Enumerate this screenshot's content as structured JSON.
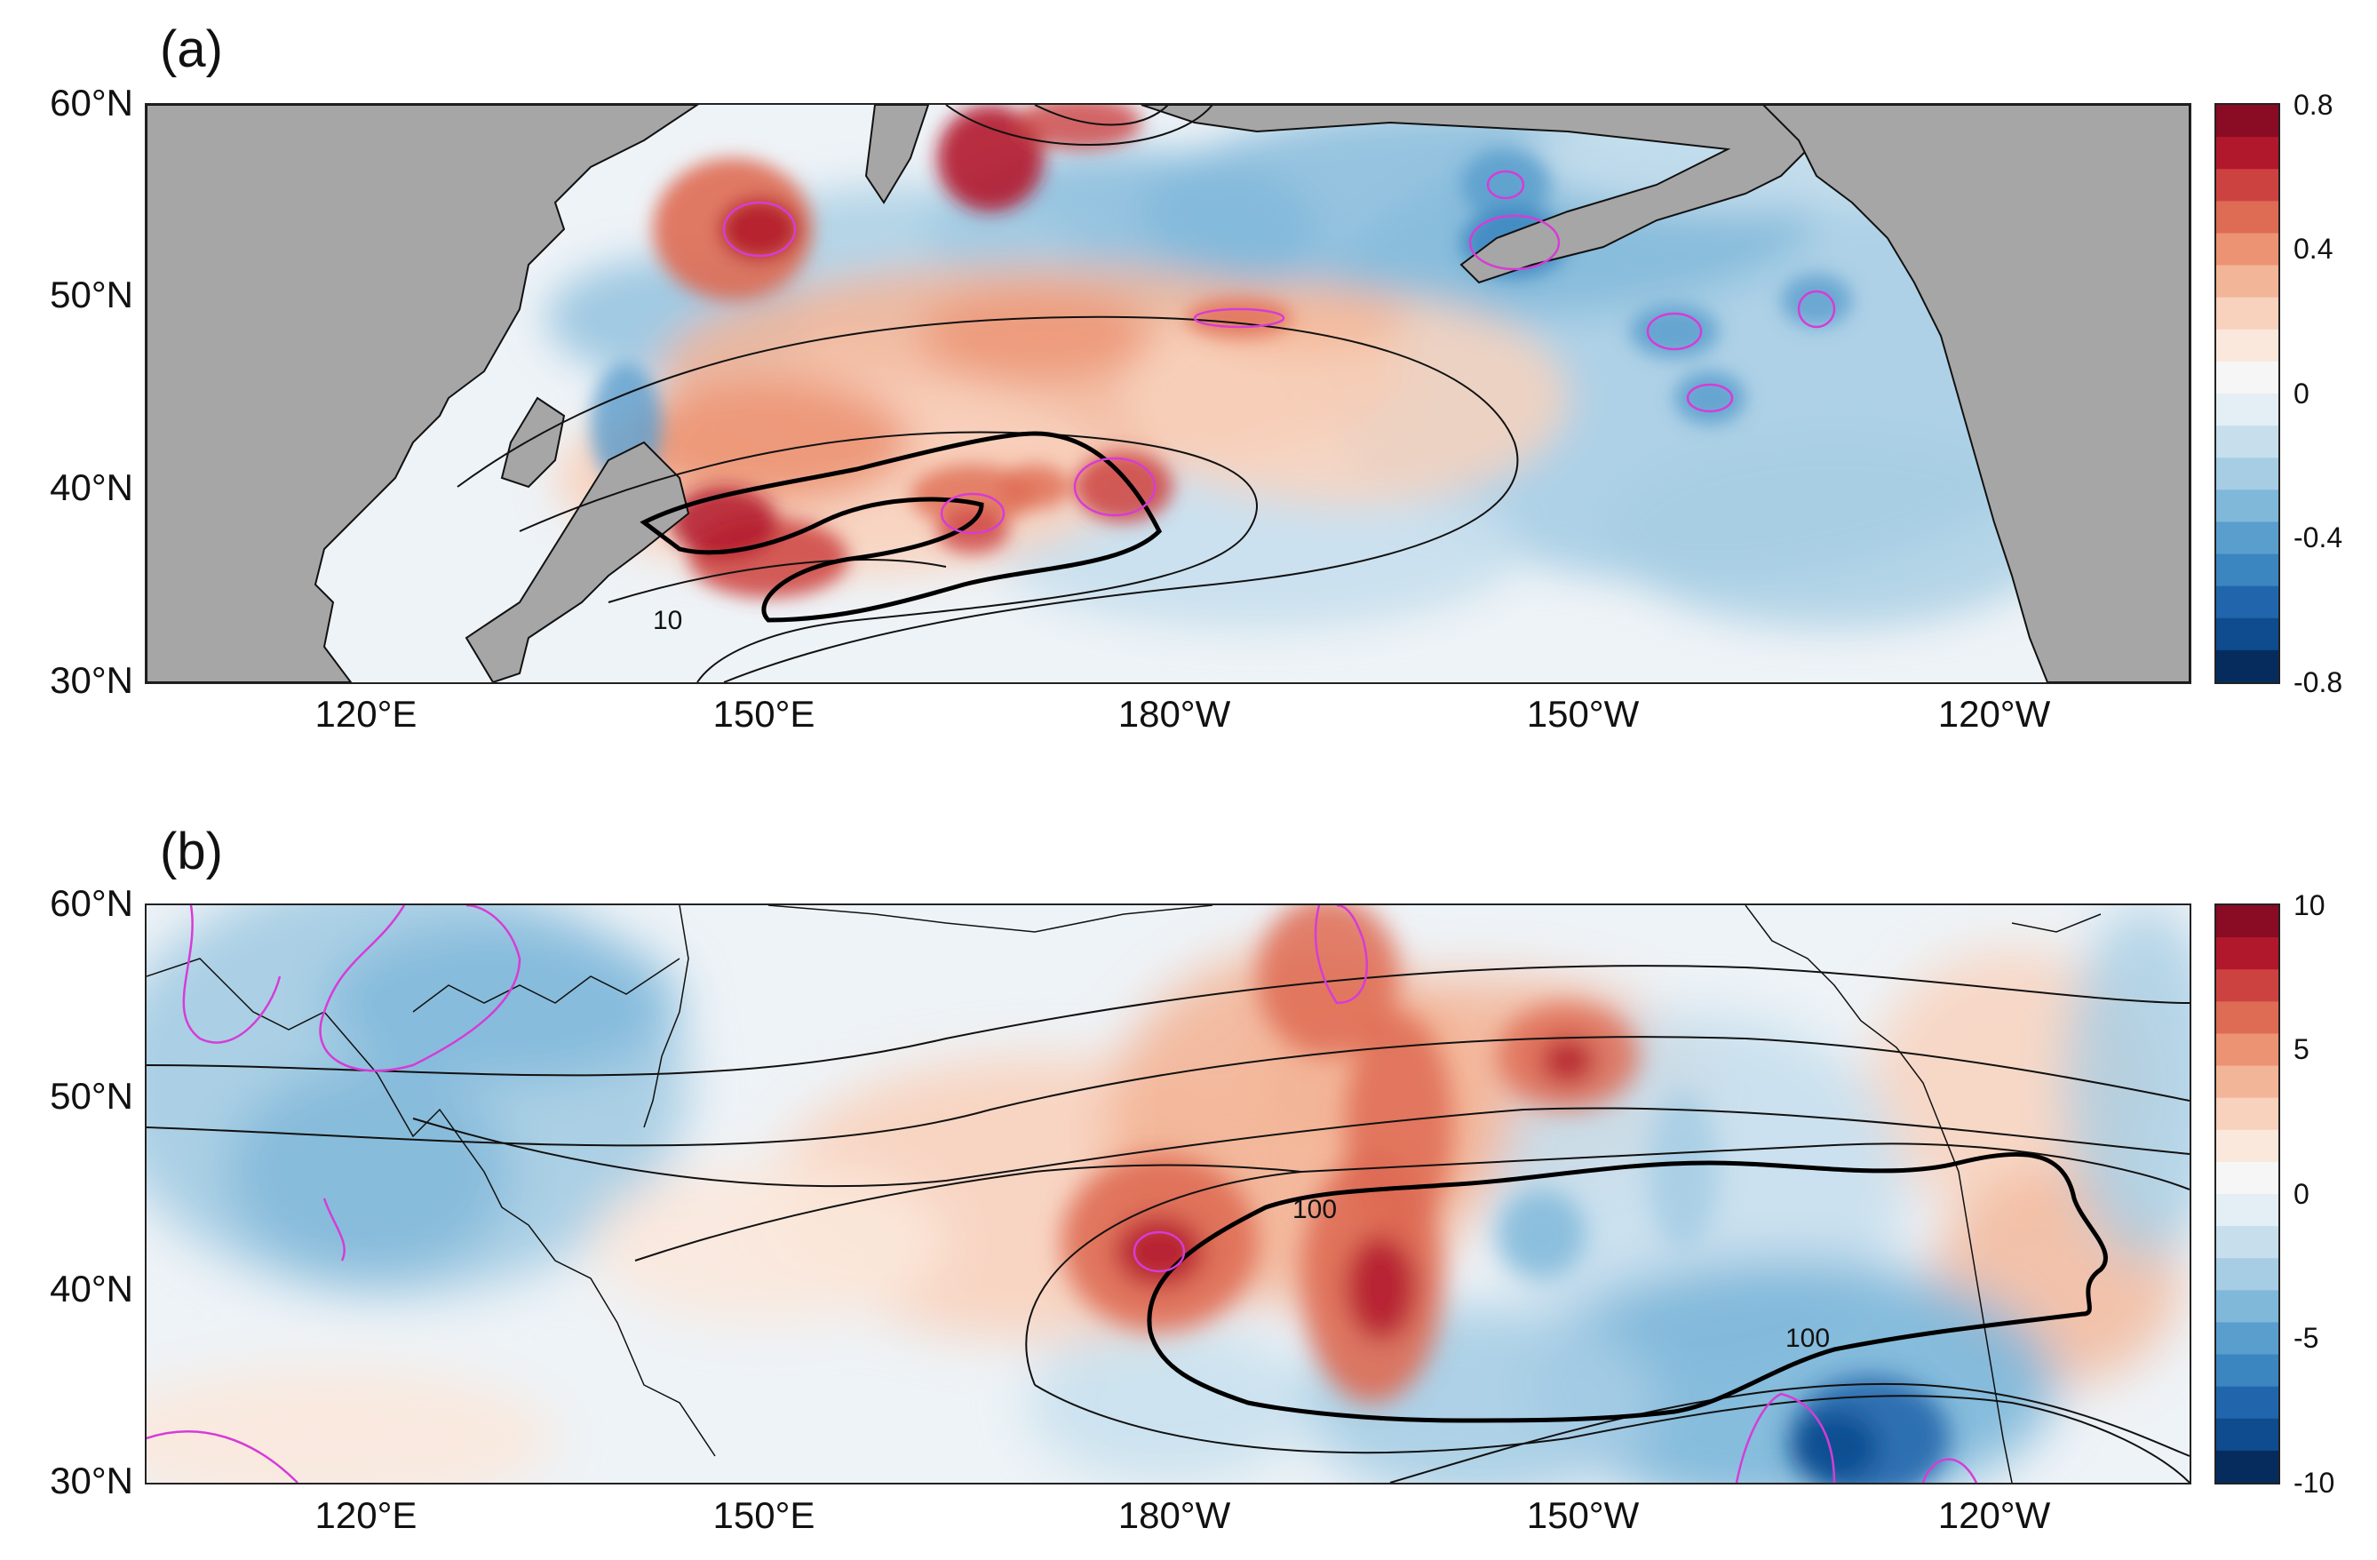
{
  "panels": [
    {
      "label": "(a)",
      "lat_ticks": [
        "60°N",
        "50°N",
        "40°N",
        "30°N"
      ],
      "lon_ticks": [
        "120°E",
        "150°E",
        "180°W",
        "150°W",
        "120°W"
      ],
      "contour_labels": [
        "10"
      ],
      "colorbar": {
        "ticks": [
          "0.8",
          "0.4",
          "0",
          "-0.4",
          "-0.8"
        ],
        "range": [
          -0.8,
          0.8
        ]
      },
      "land_color": "#a6a6a6"
    },
    {
      "label": "(b)",
      "lat_ticks": [
        "60°N",
        "50°N",
        "40°N",
        "30°N"
      ],
      "lon_ticks": [
        "120°E",
        "150°E",
        "180°W",
        "150°W",
        "120°W"
      ],
      "contour_labels": [
        "100",
        "100"
      ],
      "colorbar": {
        "ticks": [
          "10",
          "5",
          "0",
          "-5",
          "-10"
        ],
        "range": [
          -10,
          10
        ]
      }
    }
  ],
  "colormap": [
    "#062c5e",
    "#0f4b8f",
    "#2166ac",
    "#3b85c0",
    "#5a9ecd",
    "#80b8da",
    "#a6cde4",
    "#c7dfed",
    "#e3eef5",
    "#f6f6f6",
    "#fbe8dc",
    "#f8d2bd",
    "#f3b597",
    "#ec9373",
    "#de6b53",
    "#cc4241",
    "#b2182b",
    "#8a0b24"
  ]
}
